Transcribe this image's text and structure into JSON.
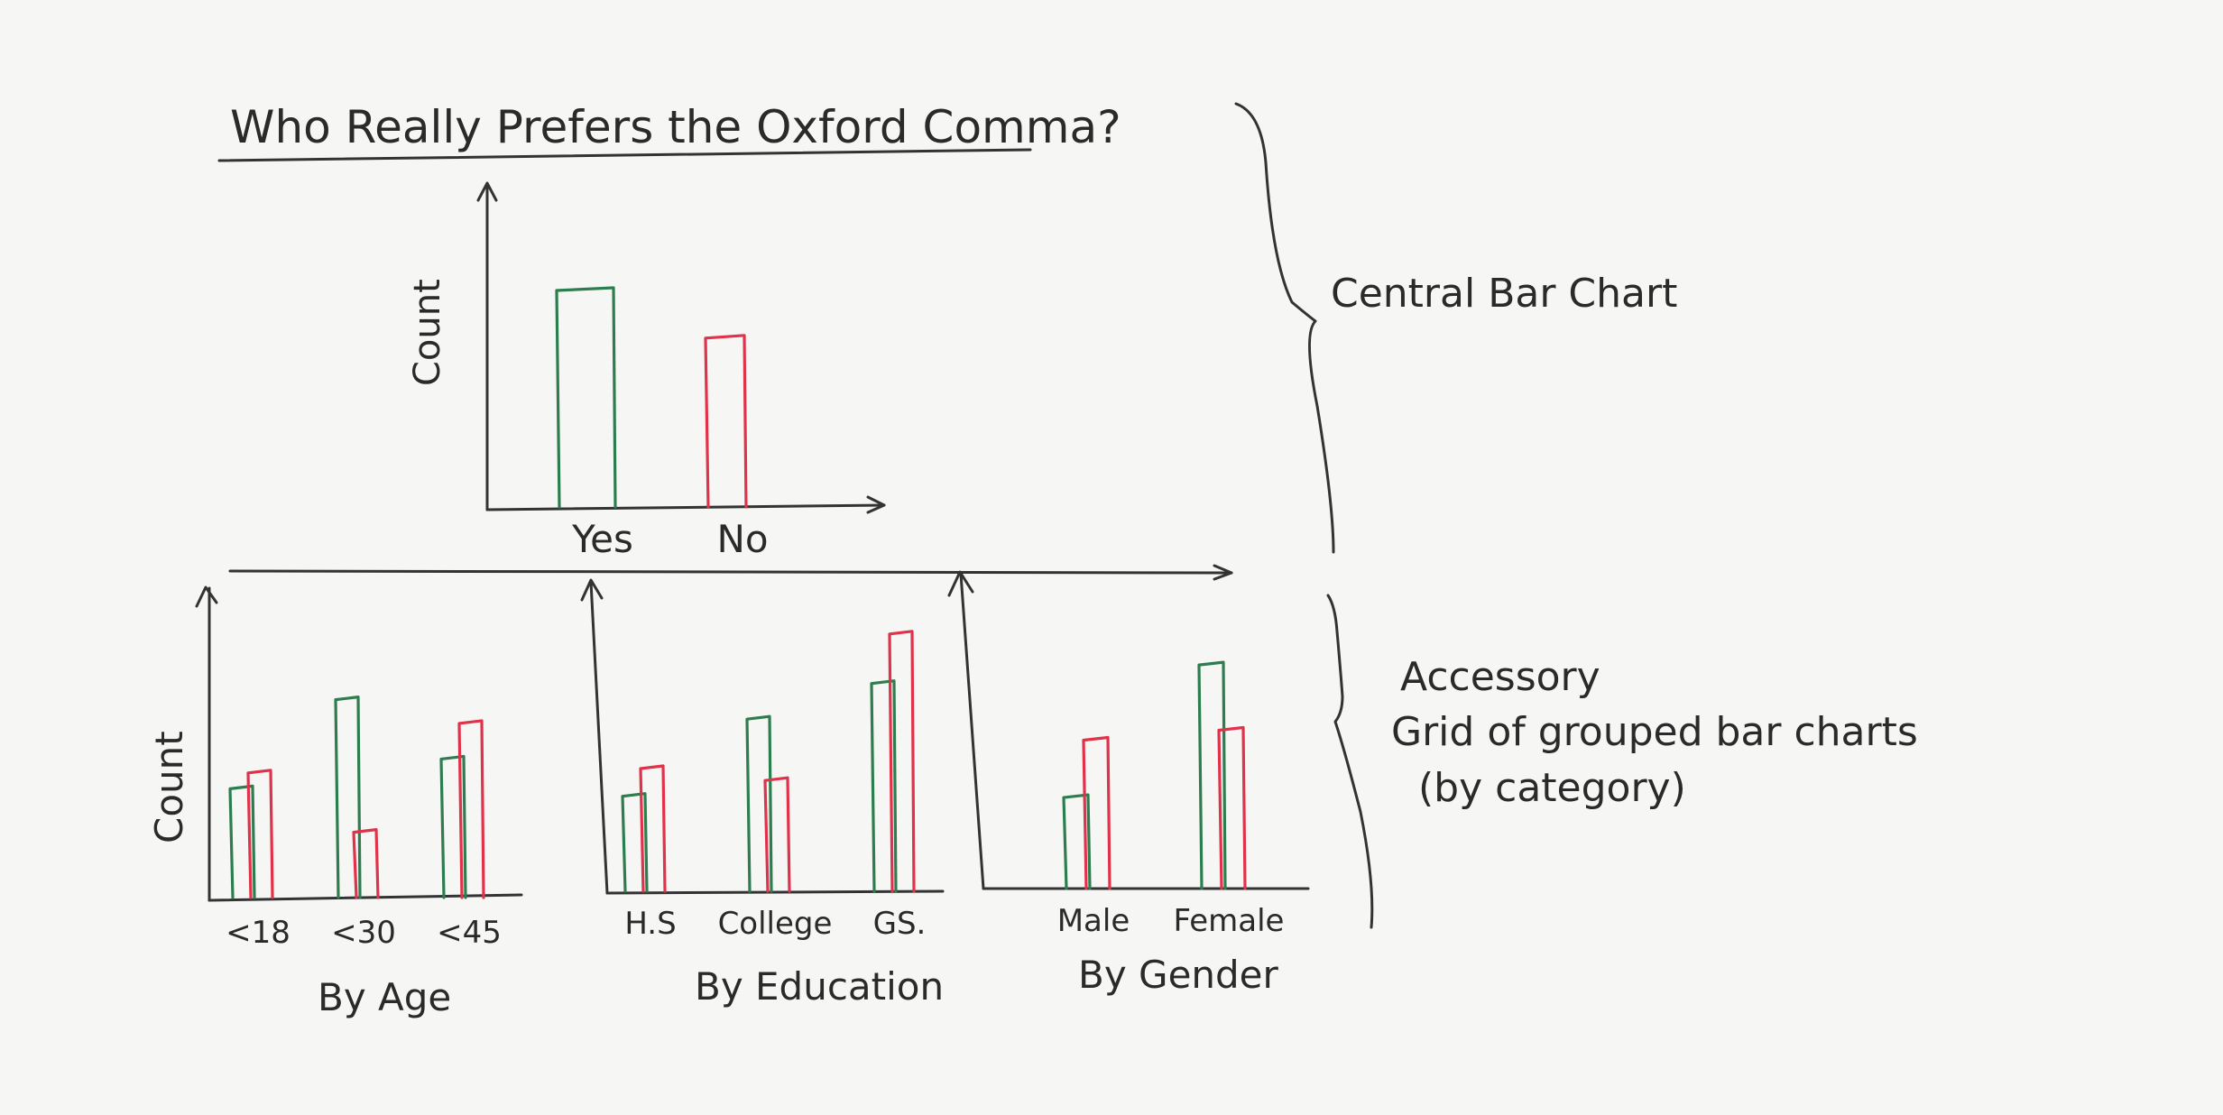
{
  "title": "Who Really Prefers the Oxford Comma?",
  "colors": {
    "yes": "#2e7d4f",
    "no": "#e0324a",
    "ink": "#333333",
    "paper": "#f6f6f4"
  },
  "annotations": {
    "central": "Central Bar Chart",
    "accessory_line1": "Accessory",
    "accessory_line2": "Grid of grouped bar charts",
    "accessory_line3": "(by category)"
  },
  "chart_data": [
    {
      "type": "bar",
      "title": "Who Really Prefers the Oxford Comma?",
      "ylabel": "Count",
      "xlabel": "",
      "categories": [
        "Yes",
        "No"
      ],
      "values": [
        100,
        78
      ],
      "ylim": [
        0,
        150
      ],
      "grid": false
    },
    {
      "type": "bar",
      "xlabel": "By Age",
      "ylabel": "Count",
      "categories": [
        "<18",
        "<30",
        "<45"
      ],
      "series": [
        {
          "values": [
            55,
            100,
            70
          ]
        },
        {
          "values": [
            63,
            33,
            88
          ]
        }
      ],
      "ylim": [
        0,
        155
      ],
      "grid": false
    },
    {
      "type": "bar",
      "xlabel": "By Education",
      "ylabel": "",
      "categories": [
        "H.S",
        "College",
        "GS."
      ],
      "series": [
        {
          "values": [
            48,
            87,
            105
          ]
        },
        {
          "values": [
            62,
            56,
            130
          ]
        }
      ],
      "ylim": [
        0,
        155
      ],
      "grid": false
    },
    {
      "type": "bar",
      "xlabel": "By Gender",
      "ylabel": "",
      "categories": [
        "Male",
        "Female"
      ],
      "series": [
        {
          "values": [
            46,
            113
          ]
        },
        {
          "values": [
            75,
            80
          ]
        }
      ],
      "ylim": [
        0,
        155
      ],
      "grid": false
    }
  ]
}
